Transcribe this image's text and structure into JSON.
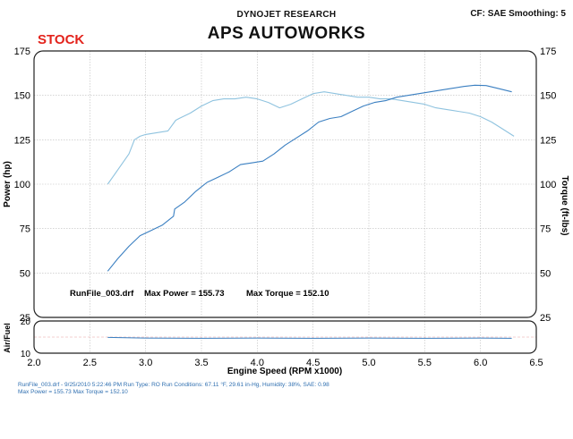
{
  "header": {
    "brand": "DYNOJET RESEARCH",
    "settings": "CF: SAE  Smoothing: 5",
    "stock_label": "STOCK",
    "title": "APS AUTOWORKS"
  },
  "colors": {
    "power_line": "#3a7fc1",
    "torque_line": "#8fc3df",
    "grid": "#bcbcbc",
    "stock_label": "#e3231c",
    "footer_text": "#2f6fb0"
  },
  "footer": {
    "line1": "RunFile_003.drf - 9/25/2010 5:22:46 PM  Run Type: RO  Run Conditions: 67.11 °F, 29.61 in-Hg,  Humidity: 38%, SAE: 0.98",
    "line2": "Max Power = 155.73  Max Torque = 152.10"
  },
  "chart_data": [
    {
      "type": "line",
      "title": "APS AUTOWORKS",
      "xlabel": "Engine Speed (RPM x1000)",
      "ylabel": "Power (hp)",
      "y2label": "Torque (ft-lbs)",
      "xlim": [
        2.0,
        6.5
      ],
      "ylim": [
        25,
        175
      ],
      "y2lim": [
        25,
        175
      ],
      "x_ticks": [
        "2.0",
        "2.5",
        "3.0",
        "3.5",
        "4.0",
        "4.5",
        "5.0",
        "5.5",
        "6.0",
        "6.5"
      ],
      "y_ticks": [
        "25",
        "50",
        "75",
        "100",
        "125",
        "150",
        "175"
      ],
      "grid": true,
      "annotation": {
        "runfile": "RunFile_003.drf",
        "max_power": "Max Power = 155.73",
        "max_torque": "Max Torque = 152.10"
      },
      "series": [
        {
          "axis": "left",
          "x": [
            2.66,
            2.75,
            2.85,
            2.95,
            3.05,
            3.15,
            3.25,
            3.26,
            3.35,
            3.45,
            3.55,
            3.65,
            3.75,
            3.85,
            3.95,
            4.05,
            4.15,
            4.25,
            4.35,
            4.45,
            4.55,
            4.65,
            4.75,
            4.85,
            4.95,
            5.05,
            5.15,
            5.25,
            5.35,
            5.45,
            5.55,
            5.65,
            5.75,
            5.85,
            5.95,
            6.05,
            6.15,
            6.28
          ],
          "values": [
            51,
            58,
            65,
            71,
            74,
            77,
            82,
            86,
            90,
            96,
            101,
            104,
            107,
            111,
            112,
            113,
            117,
            122,
            126,
            130,
            135,
            137,
            138,
            141,
            144,
            146,
            147,
            149,
            150,
            151,
            152,
            153,
            154,
            155,
            155.7,
            155.5,
            154,
            152
          ]
        },
        {
          "axis": "right",
          "x": [
            2.66,
            2.75,
            2.85,
            2.9,
            2.95,
            3.0,
            3.1,
            3.2,
            3.27,
            3.3,
            3.4,
            3.5,
            3.6,
            3.7,
            3.8,
            3.9,
            4.0,
            4.1,
            4.2,
            4.3,
            4.4,
            4.5,
            4.6,
            4.7,
            4.8,
            4.9,
            5.0,
            5.1,
            5.2,
            5.3,
            5.4,
            5.5,
            5.6,
            5.7,
            5.8,
            5.9,
            6.0,
            6.1,
            6.2,
            6.3
          ],
          "values": [
            100,
            108,
            117,
            125,
            127,
            128,
            129,
            130,
            136,
            137,
            140,
            144,
            147,
            148,
            148,
            149,
            148,
            146,
            143,
            145,
            148,
            151,
            152,
            151,
            150,
            149,
            149,
            148,
            148,
            147,
            146,
            145,
            143,
            142,
            141,
            140,
            138,
            135,
            131,
            127
          ]
        }
      ]
    },
    {
      "type": "line",
      "ylabel": "Air/Fuel",
      "ylim": [
        10,
        20
      ],
      "y_ticks": [
        "10",
        "20"
      ],
      "xlim": [
        2.0,
        6.5
      ],
      "series": [
        {
          "x": [
            2.66,
            3.0,
            3.5,
            4.0,
            4.5,
            5.0,
            5.5,
            6.0,
            6.28
          ],
          "values": [
            14.9,
            14.7,
            14.6,
            14.7,
            14.6,
            14.7,
            14.6,
            14.7,
            14.6
          ]
        }
      ]
    }
  ]
}
